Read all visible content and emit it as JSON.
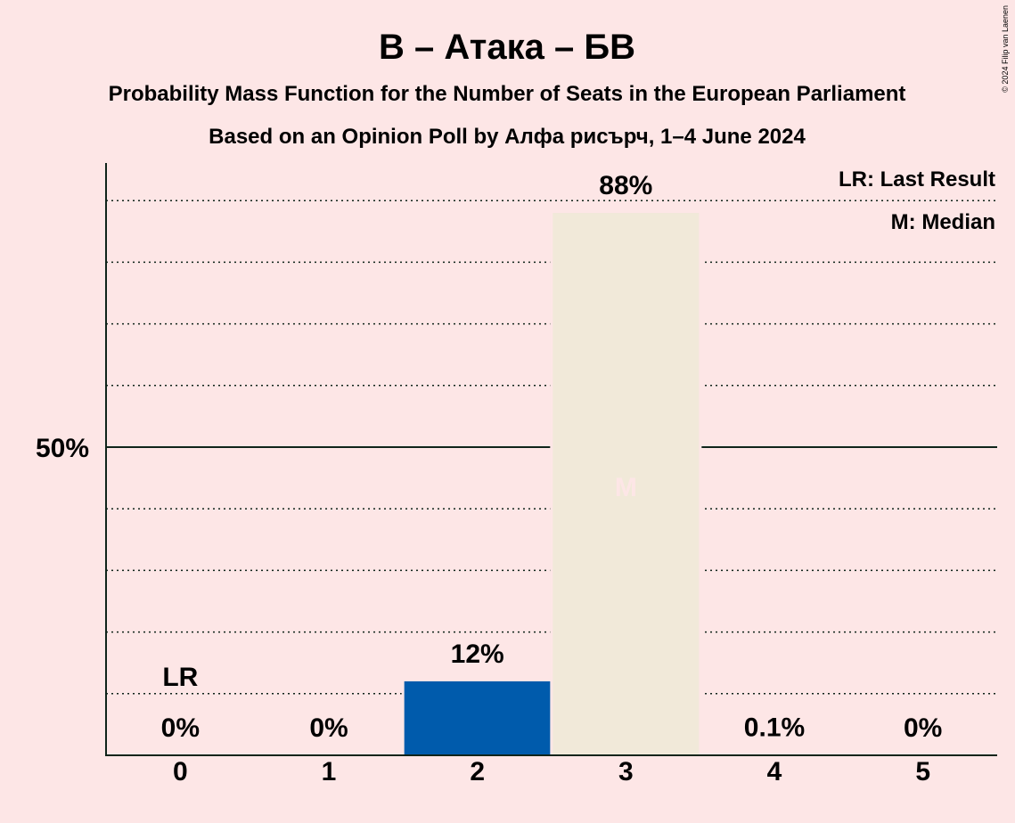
{
  "chart_data": {
    "type": "bar",
    "title": "В – Атака – БВ",
    "subtitle": "Probability Mass Function for the Number of Seats in the European Parliament",
    "subtitle2": "Based on an Opinion Poll by Алфа рисърч, 1–4 June 2024",
    "categories": [
      "0",
      "1",
      "2",
      "3",
      "4",
      "5"
    ],
    "values": [
      0,
      0,
      12,
      88,
      0.1,
      0
    ],
    "value_labels": [
      "0%",
      "0%",
      "12%",
      "88%",
      "0.1%",
      "0%"
    ],
    "bar_colors": [
      "#005BAC",
      "#005BAC",
      "#005BAC",
      "#F1E9D9",
      "#005BAC",
      "#005BAC"
    ],
    "ylim": [
      0,
      96
    ],
    "y_tick_label": "50%",
    "last_result_label": "LR",
    "last_result_index": 0,
    "median_label": "M",
    "median_index": 3,
    "legend": [
      "LR: Last Result",
      "M: Median"
    ],
    "copyright": "© 2024 Filip van Laenen"
  }
}
